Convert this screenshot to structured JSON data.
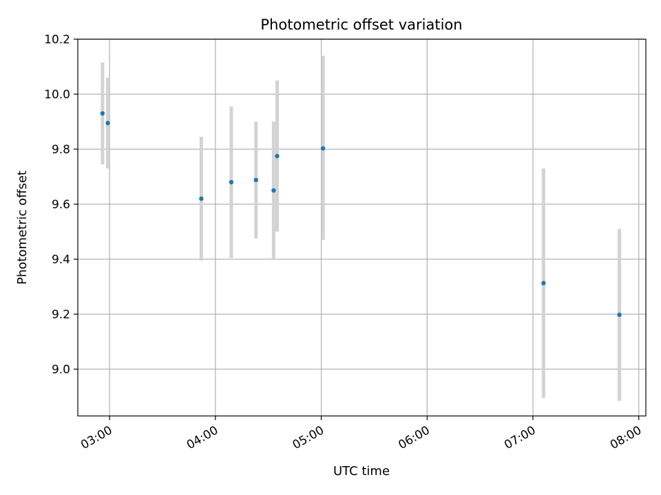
{
  "chart_data": {
    "type": "scatter",
    "title": "Photometric offset variation",
    "xlabel": "UTC time",
    "ylabel": "Photometric offset",
    "x_unit": "UTC time (HH:MM)",
    "xlim": [
      "02:42",
      "08:04"
    ],
    "ylim": [
      8.83,
      10.2
    ],
    "x_ticks": [
      "03:00",
      "04:00",
      "05:00",
      "06:00",
      "07:00",
      "08:00"
    ],
    "y_ticks": [
      "9.0",
      "9.2",
      "9.4",
      "9.6",
      "9.8",
      "10.0",
      "10.2"
    ],
    "grid": true,
    "colors": {
      "points": "#1f77b4",
      "error_bars": "#d3d3d3",
      "grid": "#b0b0b0"
    },
    "points": [
      {
        "x": "02:56",
        "y": 9.93,
        "y_low": 9.745,
        "y_high": 10.115
      },
      {
        "x": "02:59",
        "y": 9.895,
        "y_low": 9.73,
        "y_high": 10.06
      },
      {
        "x": "03:52",
        "y": 9.62,
        "y_low": 9.395,
        "y_high": 9.845
      },
      {
        "x": "04:09",
        "y": 9.68,
        "y_low": 9.405,
        "y_high": 9.955
      },
      {
        "x": "04:23",
        "y": 9.688,
        "y_low": 9.475,
        "y_high": 9.9
      },
      {
        "x": "04:33",
        "y": 9.65,
        "y_low": 9.4,
        "y_high": 9.9
      },
      {
        "x": "04:35",
        "y": 9.775,
        "y_low": 9.5,
        "y_high": 10.05
      },
      {
        "x": "05:01",
        "y": 9.803,
        "y_low": 9.47,
        "y_high": 10.14
      },
      {
        "x": "07:06",
        "y": 9.313,
        "y_low": 8.895,
        "y_high": 9.73
      },
      {
        "x": "07:49",
        "y": 9.198,
        "y_low": 8.885,
        "y_high": 9.51
      }
    ]
  }
}
